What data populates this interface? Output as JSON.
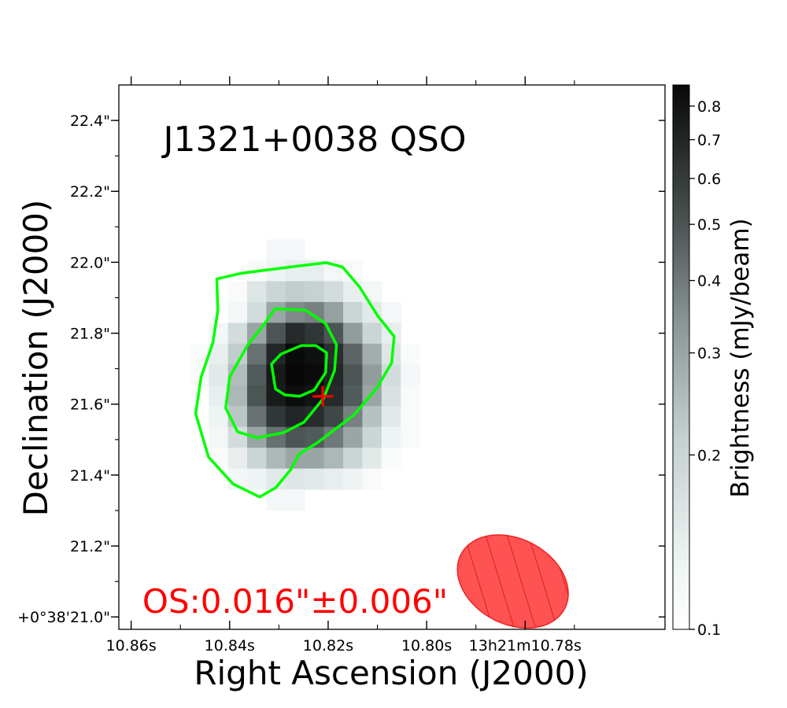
{
  "chart_data": {
    "type": "heatmap",
    "title": "J1321+0038 QSO",
    "xlabel": "Right Ascension (J2000)",
    "ylabel": "Declination (J2000)",
    "x_ticks": [
      {
        "label": "10.86s",
        "value": 10.86
      },
      {
        "label": "10.84s",
        "value": 10.84
      },
      {
        "label": "10.82s",
        "value": 10.82
      },
      {
        "label": "10.80s",
        "value": 10.8
      },
      {
        "label": "13h21m10.78s",
        "value": 10.78
      }
    ],
    "xlim": [
      10.8625,
      10.7516
    ],
    "y_ticks": [
      {
        "label": "+0°38'21.0\"",
        "value": 21.0
      },
      {
        "label": "21.2\"",
        "value": 21.2
      },
      {
        "label": "21.4\"",
        "value": 21.4
      },
      {
        "label": "21.6\"",
        "value": 21.6
      },
      {
        "label": "21.8\"",
        "value": 21.8
      },
      {
        "label": "22.0\"",
        "value": 22.0
      },
      {
        "label": "22.2\"",
        "value": 22.2
      },
      {
        "label": "22.4\"",
        "value": 22.4
      }
    ],
    "ylim": [
      20.965,
      22.5
    ],
    "colorbar": {
      "label": "Brightness (mJy/beam)",
      "scale": "log",
      "range": [
        0.1,
        0.87
      ],
      "ticks": [
        {
          "label": "0.1",
          "value": 0.1
        },
        {
          "label": "0.2",
          "value": 0.2
        },
        {
          "label": "0.3",
          "value": 0.3
        },
        {
          "label": "0.4",
          "value": 0.4
        },
        {
          "label": "0.5",
          "value": 0.5
        },
        {
          "label": "0.6",
          "value": 0.6
        },
        {
          "label": "0.7",
          "value": 0.7
        },
        {
          "label": "0.8",
          "value": 0.8
        }
      ]
    },
    "pixel_grid": {
      "ra_start": 10.8228,
      "ra_step": -0.0039,
      "dec_start": 21.6238,
      "dec_step": 0.0587,
      "col_offset": -6,
      "row_offset": -7,
      "rows": [
        [
          0.1,
          0.1,
          0.1,
          0.1,
          0.12,
          0.12,
          0.1,
          0.1,
          0.1,
          0.1,
          0.1,
          0.1,
          0.1
        ],
        [
          0.1,
          0.1,
          0.1,
          0.11,
          0.13,
          0.14,
          0.14,
          0.12,
          0.11,
          0.1,
          0.1,
          0.1,
          0.1
        ],
        [
          0.1,
          0.1,
          0.11,
          0.16,
          0.2,
          0.22,
          0.21,
          0.18,
          0.14,
          0.12,
          0.1,
          0.1,
          0.1
        ],
        [
          0.1,
          0.1,
          0.12,
          0.18,
          0.3,
          0.36,
          0.38,
          0.31,
          0.2,
          0.15,
          0.12,
          0.1,
          0.1
        ],
        [
          0.1,
          0.12,
          0.18,
          0.3,
          0.5,
          0.68,
          0.62,
          0.5,
          0.32,
          0.2,
          0.14,
          0.1,
          0.1
        ],
        [
          0.11,
          0.14,
          0.22,
          0.42,
          0.7,
          0.86,
          0.82,
          0.66,
          0.45,
          0.28,
          0.16,
          0.11,
          0.1
        ],
        [
          0.11,
          0.15,
          0.25,
          0.48,
          0.76,
          0.87,
          0.85,
          0.7,
          0.5,
          0.32,
          0.18,
          0.12,
          0.1
        ],
        [
          0.1,
          0.14,
          0.26,
          0.5,
          0.75,
          0.84,
          0.8,
          0.68,
          0.48,
          0.3,
          0.17,
          0.11,
          0.1
        ],
        [
          0.1,
          0.13,
          0.23,
          0.42,
          0.62,
          0.7,
          0.67,
          0.55,
          0.38,
          0.24,
          0.15,
          0.11,
          0.1
        ],
        [
          0.1,
          0.12,
          0.18,
          0.3,
          0.42,
          0.5,
          0.48,
          0.4,
          0.3,
          0.2,
          0.13,
          0.11,
          0.1
        ],
        [
          0.1,
          0.11,
          0.14,
          0.2,
          0.26,
          0.3,
          0.3,
          0.26,
          0.2,
          0.15,
          0.11,
          0.1,
          0.1
        ],
        [
          0.1,
          0.1,
          0.12,
          0.13,
          0.15,
          0.16,
          0.15,
          0.14,
          0.13,
          0.11,
          0.1,
          0.1,
          0.1
        ],
        [
          0.1,
          0.1,
          0.1,
          0.1,
          0.12,
          0.12,
          0.1,
          0.1,
          0.1,
          0.1,
          0.1,
          0.1,
          0.1
        ],
        [
          0.1,
          0.1,
          0.1,
          0.1,
          0.1,
          0.1,
          0.1,
          0.1,
          0.1,
          0.1,
          0.1,
          0.1,
          0.1
        ]
      ]
    },
    "contours": [
      [
        [
          10.8377,
          21.969
        ],
        [
          10.8257,
          21.99
        ],
        [
          10.8204,
          21.999
        ],
        [
          10.8171,
          21.987
        ],
        [
          10.8136,
          21.93
        ],
        [
          10.8099,
          21.848
        ],
        [
          10.8066,
          21.791
        ],
        [
          10.8071,
          21.717
        ],
        [
          10.8101,
          21.645
        ],
        [
          10.8148,
          21.569
        ],
        [
          10.8221,
          21.492
        ],
        [
          10.8259,
          21.459
        ],
        [
          10.8275,
          21.417
        ],
        [
          10.8306,
          21.365
        ],
        [
          10.8339,
          21.338
        ],
        [
          10.8393,
          21.375
        ],
        [
          10.8443,
          21.451
        ],
        [
          10.8469,
          21.573
        ],
        [
          10.8458,
          21.676
        ],
        [
          10.8434,
          21.773
        ],
        [
          10.8424,
          21.865
        ],
        [
          10.8426,
          21.953
        ],
        [
          10.8377,
          21.969
        ]
      ],
      [
        [
          10.8308,
          21.869
        ],
        [
          10.8246,
          21.865
        ],
        [
          10.8205,
          21.827
        ],
        [
          10.8183,
          21.767
        ],
        [
          10.8187,
          21.695
        ],
        [
          10.8209,
          21.617
        ],
        [
          10.8249,
          21.549
        ],
        [
          10.829,
          21.52
        ],
        [
          10.8344,
          21.505
        ],
        [
          10.8384,
          21.522
        ],
        [
          10.8408,
          21.589
        ],
        [
          10.84,
          21.676
        ],
        [
          10.8364,
          21.765
        ],
        [
          10.833,
          21.825
        ],
        [
          10.8308,
          21.869
        ]
      ],
      [
        [
          10.8225,
          21.765
        ],
        [
          10.8203,
          21.745
        ],
        [
          10.8205,
          21.689
        ],
        [
          10.8228,
          21.64
        ],
        [
          10.8258,
          21.622
        ],
        [
          10.8288,
          21.626
        ],
        [
          10.8307,
          21.643
        ],
        [
          10.8315,
          21.713
        ],
        [
          10.8296,
          21.741
        ],
        [
          10.8255,
          21.765
        ],
        [
          10.8225,
          21.765
        ]
      ]
    ],
    "source_marker": {
      "ra": 10.8211,
      "dec": 21.622
    },
    "beam": {
      "ra": 10.7825,
      "dec": 21.1,
      "major_arcsec": 0.33,
      "minor_arcsec": 0.24,
      "pa_deg": 28
    },
    "offset_label": "OS:0.016\"±0.006\"",
    "colors": {
      "contour": "#00ff00",
      "marker": "#ff0000",
      "beam": "#ff4444",
      "offset_text": "#ff0000",
      "axes": "#000000"
    }
  }
}
